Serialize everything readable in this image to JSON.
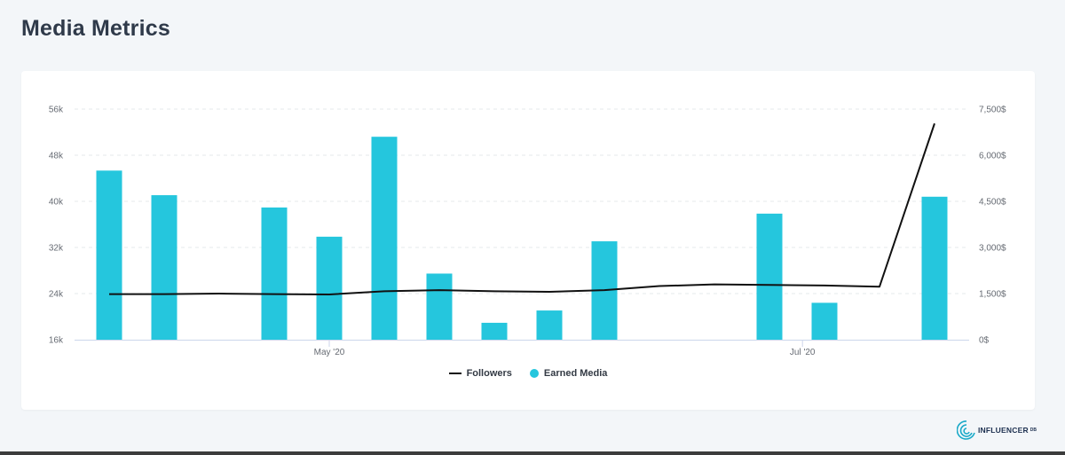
{
  "page": {
    "title": "Media Metrics"
  },
  "brand": {
    "name": "INFLUENCER",
    "superscript": "DB"
  },
  "colors": {
    "bar": "#25c6dd",
    "line": "#111111",
    "grid": "#e6e8eb",
    "axis": "#ccd6eb"
  },
  "legend": {
    "followers_label": "Followers",
    "earned_media_label": "Earned Media"
  },
  "chart_data": {
    "type": "bar",
    "x_tick_labels": [
      {
        "at": 5,
        "label": "May '20"
      },
      {
        "at": 13.6,
        "label": "Jul '20"
      }
    ],
    "categories": [
      1,
      2,
      3,
      4,
      5,
      6,
      7,
      8,
      9,
      10,
      11,
      12,
      13,
      14,
      15,
      16
    ],
    "series": [
      {
        "name": "Earned Media",
        "type": "bar",
        "axis": "right",
        "values": [
          5500,
          4700,
          null,
          4300,
          3350,
          6600,
          2150,
          550,
          950,
          3200,
          null,
          null,
          4100,
          1200,
          null,
          4650
        ]
      },
      {
        "name": "Followers",
        "type": "line",
        "axis": "left",
        "values": [
          23900,
          23900,
          24000,
          23900,
          23850,
          24400,
          24600,
          24400,
          24300,
          24600,
          25300,
          25600,
          25500,
          25400,
          25200,
          53500
        ]
      }
    ],
    "y_left": {
      "ticks": [
        16000,
        24000,
        32000,
        40000,
        48000,
        56000
      ],
      "tick_labels": [
        "16k",
        "24k",
        "32k",
        "40k",
        "48k",
        "56k"
      ],
      "ylim": [
        16000,
        56000
      ]
    },
    "y_right": {
      "ticks": [
        0,
        1500,
        3000,
        4500,
        6000,
        7500
      ],
      "tick_labels": [
        "0$",
        "1,500$",
        "3,000$",
        "4,500$",
        "6,000$",
        "7,500$"
      ],
      "ylim": [
        0,
        7500
      ]
    },
    "grid": true,
    "legend_position": "bottom-center"
  }
}
